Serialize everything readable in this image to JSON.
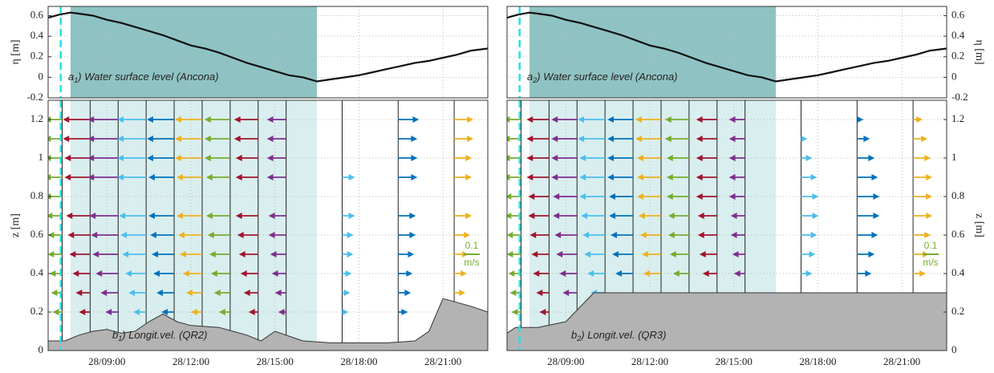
{
  "chart_data": [
    {
      "type": "line",
      "ylabel": "η [m]",
      "yaxis_side": "left",
      "label_letter": "a",
      "label_sub": "1",
      "label_text": ") Water surface level (Ancona)",
      "x": [
        6.9,
        7.3,
        7.7,
        8.0,
        8.5,
        9.0,
        9.5,
        10.0,
        10.5,
        11.0,
        11.5,
        12.0,
        12.5,
        13.0,
        13.5,
        14.0,
        14.5,
        15.0,
        15.5,
        16.0,
        16.5,
        17.0,
        17.5,
        18.0,
        18.5,
        19.0,
        19.5,
        20.0,
        20.5,
        21.0,
        21.5,
        22.0,
        22.6
      ],
      "values": [
        0.58,
        0.61,
        0.63,
        0.62,
        0.6,
        0.56,
        0.53,
        0.49,
        0.45,
        0.41,
        0.36,
        0.31,
        0.28,
        0.24,
        0.19,
        0.14,
        0.1,
        0.06,
        0.02,
        0.0,
        -0.04,
        -0.02,
        0.0,
        0.02,
        0.05,
        0.08,
        0.11,
        0.14,
        0.16,
        0.19,
        0.22,
        0.26,
        0.28
      ],
      "color": "#111111",
      "xlim": [
        6.9,
        22.6
      ],
      "xticks": [
        9,
        12,
        15,
        18,
        21
      ],
      "ylim": [
        -0.2,
        0.69
      ],
      "yticks": [
        -0.2,
        0,
        0.2,
        0.4,
        0.6
      ],
      "grid": true,
      "shade": [
        7.7,
        16.5
      ],
      "shade_color": "#5fa9a9",
      "marker_x": 7.35,
      "marker_color": "#22e0e8"
    },
    {
      "type": "profiles",
      "ylabel": "z [m]",
      "yaxis_side": "left",
      "label_letter": "b",
      "label_sub": "1",
      "label_text": ") Longit.vel. (QR2)",
      "xlim": [
        6.9,
        22.6
      ],
      "xticks": [
        {
          "value": 9,
          "label": "28/09:00"
        },
        {
          "value": 12,
          "label": "28/12:00"
        },
        {
          "value": 15,
          "label": "28/15:00"
        },
        {
          "value": 18,
          "label": "28/18:00"
        },
        {
          "value": 21,
          "label": "28/21:00"
        }
      ],
      "ylim": [
        0,
        1.3
      ],
      "yticks": [
        0,
        0.2,
        0.4,
        0.6,
        0.8,
        1,
        1.2
      ],
      "grid": true,
      "shade": [
        7.7,
        16.5
      ],
      "shade_color": "#d9eeee",
      "marker_x": 7.35,
      "marker_color": "#22e0e8",
      "bed": {
        "x": [
          6.9,
          7.5,
          8.0,
          8.5,
          9.0,
          9.5,
          10.0,
          10.5,
          11.0,
          11.5,
          12.0,
          13.0,
          13.5,
          14.0,
          14.5,
          15.0,
          16.0,
          17.0,
          18.0,
          19.0,
          20.0,
          20.5,
          21.0,
          22.0,
          22.6
        ],
        "values": [
          0.05,
          0.05,
          0.08,
          0.1,
          0.11,
          0.09,
          0.1,
          0.15,
          0.19,
          0.15,
          0.13,
          0.12,
          0.1,
          0.08,
          0.05,
          0.1,
          0.05,
          0.04,
          0.04,
          0.04,
          0.05,
          0.1,
          0.27,
          0.23,
          0.2
        ],
        "color": "#b3b3b3"
      },
      "scale_ref": 0.1,
      "scale_unit": "m/s",
      "scale_color": "#77ac30",
      "profiles": {
        "times": [
          7.4,
          8.4,
          9.4,
          10.4,
          11.4,
          12.4,
          13.4,
          14.4,
          15.4,
          17.4,
          19.4,
          21.4
        ],
        "z": [
          0.2,
          0.3,
          0.4,
          0.5,
          0.6,
          0.7,
          0.8,
          0.9,
          1.0,
          1.1,
          1.2
        ],
        "colors": [
          "#77ac30",
          "#a2142f",
          "#7e2f8e",
          "#4dbeee",
          "#0072bd",
          "#edb120"
        ],
        "u": [
          [
            -0.05,
            -0.06,
            -0.07,
            -0.08,
            -0.08,
            -0.09,
            -0.1,
            -0.1,
            -0.1,
            -0.1,
            -0.1
          ],
          [
            -0.06,
            -0.08,
            -0.1,
            -0.12,
            -0.13,
            -0.14,
            null,
            -0.15,
            -0.15,
            -0.16,
            -0.16
          ],
          [
            -0.07,
            -0.1,
            -0.13,
            -0.15,
            -0.16,
            -0.17,
            null,
            -0.18,
            -0.18,
            -0.18,
            -0.18
          ],
          [
            -0.07,
            -0.1,
            -0.12,
            -0.14,
            -0.15,
            -0.16,
            null,
            -0.17,
            -0.17,
            -0.17,
            -0.17
          ],
          [
            -0.07,
            -0.1,
            -0.12,
            -0.13,
            -0.14,
            -0.15,
            null,
            -0.15,
            -0.16,
            -0.16,
            -0.16
          ],
          [
            -0.06,
            -0.09,
            -0.11,
            -0.13,
            -0.14,
            -0.15,
            null,
            -0.15,
            -0.16,
            -0.16,
            -0.16
          ],
          [
            -0.06,
            -0.09,
            -0.11,
            -0.12,
            -0.13,
            -0.14,
            null,
            -0.14,
            -0.15,
            -0.15,
            -0.15
          ],
          [
            -0.05,
            -0.08,
            -0.1,
            -0.11,
            -0.12,
            -0.13,
            null,
            -0.13,
            -0.13,
            -0.14,
            -0.14
          ],
          [
            -0.04,
            -0.06,
            -0.08,
            -0.09,
            -0.1,
            -0.1,
            null,
            -0.11,
            -0.11,
            -0.11,
            -0.11
          ],
          [
            0.03,
            0.04,
            0.05,
            0.06,
            0.06,
            0.07,
            null,
            0.07,
            null,
            null,
            null
          ],
          [
            0.05,
            0.07,
            0.08,
            0.09,
            0.1,
            0.1,
            null,
            0.11,
            0.11,
            0.11,
            0.12
          ],
          [
            0.04,
            0.06,
            0.07,
            0.08,
            0.09,
            0.1,
            null,
            0.1,
            0.1,
            0.11,
            0.11
          ]
        ]
      }
    },
    {
      "type": "line",
      "ylabel": "η [m]",
      "yaxis_side": "right",
      "label_letter": "a",
      "label_sub": "2",
      "label_text": ") Water surface level (Ancona)",
      "x": [
        6.9,
        7.3,
        7.7,
        8.0,
        8.5,
        9.0,
        9.5,
        10.0,
        10.5,
        11.0,
        11.5,
        12.0,
        12.5,
        13.0,
        13.5,
        14.0,
        14.5,
        15.0,
        15.5,
        16.0,
        16.5,
        17.0,
        17.5,
        18.0,
        18.5,
        19.0,
        19.5,
        20.0,
        20.5,
        21.0,
        21.5,
        22.0,
        22.6
      ],
      "values": [
        0.58,
        0.61,
        0.63,
        0.62,
        0.6,
        0.56,
        0.53,
        0.49,
        0.45,
        0.41,
        0.36,
        0.31,
        0.28,
        0.24,
        0.19,
        0.14,
        0.1,
        0.06,
        0.02,
        0.0,
        -0.04,
        -0.02,
        0.0,
        0.02,
        0.05,
        0.08,
        0.11,
        0.14,
        0.16,
        0.19,
        0.22,
        0.26,
        0.28
      ],
      "color": "#111111",
      "xlim": [
        6.9,
        22.6
      ],
      "xticks": [
        9,
        12,
        15,
        18,
        21
      ],
      "ylim": [
        -0.2,
        0.69
      ],
      "yticks": [
        -0.2,
        0,
        0.2,
        0.4,
        0.6
      ],
      "grid": true,
      "shade": [
        7.7,
        16.5
      ],
      "shade_color": "#5fa9a9",
      "marker_x": 7.35,
      "marker_color": "#22e0e8"
    },
    {
      "type": "profiles",
      "ylabel": "z [m]",
      "yaxis_side": "right",
      "label_letter": "b",
      "label_sub": "2",
      "label_text": ") Longit.vel. (QR3)",
      "xlim": [
        6.9,
        22.6
      ],
      "xticks": [
        {
          "value": 9,
          "label": "28/09:00"
        },
        {
          "value": 12,
          "label": "28/12:00"
        },
        {
          "value": 15,
          "label": "28/15:00"
        },
        {
          "value": 18,
          "label": "28/18:00"
        },
        {
          "value": 21,
          "label": "28/21:00"
        }
      ],
      "ylim": [
        0,
        1.3
      ],
      "yticks": [
        0,
        0.2,
        0.4,
        0.6,
        0.8,
        1,
        1.2
      ],
      "grid": true,
      "shade": [
        7.7,
        16.5
      ],
      "shade_color": "#d9eeee",
      "marker_x": 7.35,
      "marker_color": "#22e0e8",
      "bed": {
        "x": [
          6.9,
          7.2,
          8.0,
          9.0,
          10.0,
          22.6
        ],
        "values": [
          0.09,
          0.12,
          0.12,
          0.15,
          0.3,
          0.3
        ],
        "color": "#b3b3b3"
      },
      "scale_ref": 0.1,
      "scale_unit": "m/s",
      "scale_color": "#77ac30",
      "profiles": {
        "times": [
          7.4,
          8.4,
          9.4,
          10.4,
          11.4,
          12.4,
          13.4,
          14.4,
          15.4,
          17.4,
          19.4,
          21.4
        ],
        "z": [
          0.2,
          0.3,
          0.4,
          0.5,
          0.6,
          0.7,
          0.8,
          0.9,
          1.0,
          1.1,
          1.2
        ],
        "colors": [
          "#77ac30",
          "#a2142f",
          "#7e2f8e",
          "#4dbeee",
          "#0072bd",
          "#edb120"
        ],
        "u": [
          [
            -0.05,
            -0.06,
            -0.07,
            -0.08,
            -0.08,
            -0.09,
            -0.09,
            -0.1,
            -0.1,
            -0.1,
            -0.1
          ],
          [
            -0.05,
            -0.07,
            -0.09,
            -0.1,
            -0.11,
            -0.12,
            -0.12,
            -0.13,
            -0.13,
            -0.13,
            -0.13
          ],
          [
            null,
            -0.08,
            -0.1,
            -0.12,
            -0.13,
            -0.14,
            -0.14,
            -0.15,
            -0.15,
            -0.15,
            -0.15
          ],
          [
            null,
            -0.08,
            -0.1,
            -0.12,
            -0.13,
            -0.14,
            -0.15,
            -0.15,
            -0.15,
            -0.16,
            -0.16
          ],
          [
            null,
            null,
            -0.1,
            -0.12,
            -0.13,
            -0.14,
            -0.14,
            -0.15,
            -0.15,
            -0.15,
            -0.15
          ],
          [
            null,
            null,
            -0.1,
            -0.11,
            -0.12,
            -0.13,
            -0.14,
            -0.14,
            -0.14,
            -0.15,
            -0.15
          ],
          [
            null,
            null,
            -0.09,
            -0.11,
            -0.12,
            -0.12,
            -0.13,
            -0.13,
            -0.13,
            -0.14,
            -0.14
          ],
          [
            null,
            null,
            -0.08,
            -0.1,
            -0.11,
            -0.11,
            -0.12,
            -0.12,
            -0.12,
            -0.12,
            -0.12
          ],
          [
            null,
            null,
            -0.06,
            -0.07,
            -0.08,
            -0.08,
            -0.09,
            -0.09,
            -0.09,
            -0.09,
            -0.09
          ],
          [
            null,
            null,
            0.06,
            0.08,
            0.09,
            0.1,
            0.1,
            0.09,
            0.06,
            0.03,
            null
          ],
          [
            null,
            null,
            0.08,
            0.1,
            0.12,
            0.13,
            0.13,
            0.12,
            0.1,
            0.07,
            0.03
          ],
          [
            null,
            null,
            0.07,
            0.09,
            0.1,
            0.11,
            0.11,
            0.11,
            0.1,
            0.08,
            0.05
          ]
        ]
      }
    }
  ]
}
